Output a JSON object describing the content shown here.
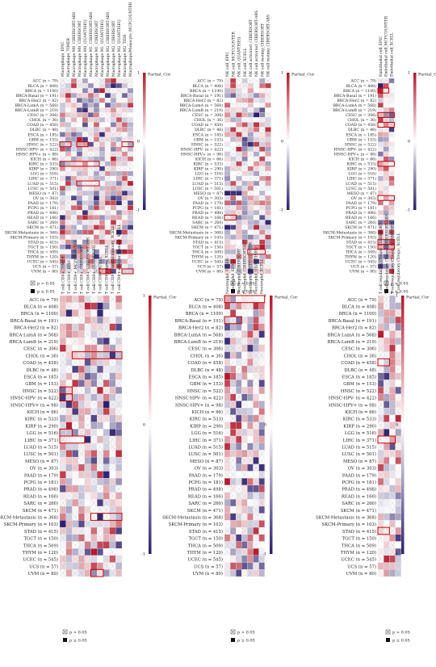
{
  "chart_data": [
    {
      "type": "heatmap",
      "legend_title": "Partial_Cor",
      "legend_ticks": [
        "1",
        "0",
        "-1"
      ],
      "sig_labels": [
        "p > 0.05",
        "p ≤ 0.05"
      ],
      "rows": [
        "ACC (n = 79)",
        "BLCA (n = 408)",
        "BRCA (n = 1100)",
        "BRCA-Basal (n = 191)",
        "BRCA-Her2 (n = 82)",
        "BRCA-LumA (n = 568)",
        "BRCA-LumB (n = 219)",
        "CESC (n = 306)",
        "CHOL (n = 36)",
        "COAD (n = 458)",
        "DLBC (n = 48)",
        "ESCA (n = 185)",
        "GBM (n = 153)",
        "HNSC (n = 522)",
        "HNSC-HPV- (n = 422)",
        "HNSC-HPV+ (n = 98)",
        "KICH (n = 66)",
        "KIRC (n = 533)",
        "KIRP (n = 290)",
        "LGG (n = 516)",
        "LIHC (n = 371)",
        "LUAD (n = 515)",
        "LUSC (n = 501)",
        "MESO (n = 87)",
        "OV (n = 303)",
        "PAAD (n = 179)",
        "PCPG (n = 181)",
        "PRAD (n = 498)",
        "READ (n = 166)",
        "SARC (n = 260)",
        "SKCM (n = 471)",
        "SKCM-Metastasis (n = 368)",
        "SKCM-Primary (n = 103)",
        "STAD (n = 415)",
        "TGCT (n = 150)",
        "THCA (n = 509)",
        "THYM (n = 120)",
        "UCEC (n = 545)",
        "UCS (n = 57)",
        "UVM (n = 80)"
      ],
      "columns": [
        "Macrophage_EPIC",
        "Macrophage_TIMER",
        "Macrophage M0_CIBERSORT-ABS",
        "Macrophage M0_CIBERSORT",
        "Macrophage M0_QUANTISEQ",
        "Macrophage M1_CIBERSORT-ABS",
        "Macrophage M1_CIBERSORT",
        "Macrophage M1_QUANTISEQ",
        "Macrophage M2_CIBERSORT-ABS",
        "Macrophage M2_CIBERSORT",
        "Macrophage M2_QUANTISEQ",
        "Macrophage M2_TIDE",
        "Macrophage/Monocyte_MCPCOUNTER"
      ]
    },
    {
      "type": "heatmap",
      "legend_title": "Partial_Cor",
      "legend_ticks": [
        "1",
        "0",
        "-1"
      ],
      "sig_labels": [
        "p > 0.05",
        "p ≤ 0.05"
      ],
      "rows": [
        "ACC (n = 79)",
        "BLCA (n = 408)",
        "BRCA (n = 1100)",
        "BRCA-Basal (n = 191)",
        "BRCA-Her2 (n = 82)",
        "BRCA-LumA (n = 568)",
        "BRCA-LumB (n = 219)",
        "CESC (n = 306)",
        "CHOL (n = 36)",
        "COAD (n = 458)",
        "DLBC (n = 48)",
        "ESCA (n = 185)",
        "GBM (n = 153)",
        "HNSC (n = 522)",
        "HNSC-HPV- (n = 422)",
        "HNSC-HPV+ (n = 98)",
        "KICH (n = 66)",
        "KIRC (n = 533)",
        "KIRP (n = 290)",
        "LGG (n = 516)",
        "LIHC (n = 371)",
        "LUAD (n = 515)",
        "LUSC (n = 501)",
        "MESO (n = 87)",
        "OV (n = 303)",
        "PAAD (n = 179)",
        "PCPG (n = 181)",
        "PRAD (n = 498)",
        "READ (n = 166)",
        "SARC (n = 260)",
        "SKCM (n = 471)",
        "SKCM-Metastasis (n = 368)",
        "SKCM-Primary (n = 103)",
        "STAD (n = 415)",
        "TGCT (n = 150)",
        "THCA (n = 509)",
        "THYM (n = 120)",
        "UCEC (n = 545)",
        "UCS (n = 57)",
        "UVM (n = 80)"
      ],
      "columns": [
        "NK cell_EPIC",
        "NK cell_MCPCOUNTER",
        "NK cell_QUANTISEQ",
        "NK cell_XCELL",
        "NK cell activated_CIBERSORT",
        "NK cell activated_CIBERSORT-ABS",
        "NK cell resting_CIBERSORT",
        "NK cell resting_CIBERSORT-ABS"
      ]
    },
    {
      "type": "heatmap",
      "legend_title": "Partial_Cor",
      "legend_ticks": [
        "1",
        "0",
        "-1"
      ],
      "sig_labels": [
        "p > 0.05",
        "p ≤ 0.05"
      ],
      "rows": [
        "ACC (n = 79)",
        "BLCA (n = 408)",
        "BRCA (n = 1100)",
        "BRCA-Basal (n = 191)",
        "BRCA-Her2 (n = 82)",
        "BRCA-LumA (n = 568)",
        "BRCA-LumB (n = 219)",
        "CESC (n = 306)",
        "CHOL (n = 36)",
        "COAD (n = 458)",
        "DLBC (n = 48)",
        "ESCA (n = 185)",
        "GBM (n = 153)",
        "HNSC (n = 522)",
        "HNSC-HPV- (n = 422)",
        "HNSC-HPV+ (n = 98)",
        "KICH (n = 66)",
        "KIRC (n = 533)",
        "KIRP (n = 290)",
        "LGG (n = 516)",
        "LIHC (n = 371)",
        "LUAD (n = 515)",
        "LUSC (n = 501)",
        "MESO (n = 87)",
        "OV (n = 303)",
        "PAAD (n = 179)",
        "PCPG (n = 181)",
        "PRAD (n = 498)",
        "READ (n = 166)",
        "SARC (n = 260)",
        "SKCM (n = 471)",
        "SKCM-Metastasis (n = 368)",
        "SKCM-Primary (n = 103)",
        "STAD (n = 415)",
        "TGCT (n = 150)",
        "THCA (n = 509)",
        "THYM (n = 120)",
        "UCEC (n = 545)",
        "UCS (n = 57)",
        "UVM (n = 80)"
      ],
      "columns": [
        "Endothelial cell_EPIC",
        "Endothelial cell_MCPCOUNTER",
        "Endothelial cell_XCELL"
      ]
    },
    {
      "type": "heatmap",
      "legend_title": "Partial_Cor",
      "legend_ticks": [
        "1",
        "0",
        "-1"
      ],
      "sig_labels": [
        "p > 0.05",
        "p ≤ 0.05"
      ],
      "rows": [
        "ACC (n = 79)",
        "BLCA (n = 408)",
        "BRCA (n = 1100)",
        "BRCA-Basal (n = 191)",
        "BRCA-Her2 (n = 82)",
        "BRCA-LumA (n = 568)",
        "BRCA-LumB (n = 219)",
        "CESC (n = 306)",
        "CHOL (n = 36)",
        "COAD (n = 458)",
        "DLBC (n = 48)",
        "ESCA (n = 185)",
        "GBM (n = 153)",
        "HNSC (n = 522)",
        "HNSC-HPV- (n = 422)",
        "HNSC-HPV+ (n = 98)",
        "KICH (n = 66)",
        "KIRC (n = 533)",
        "KIRP (n = 290)",
        "LGG (n = 516)",
        "LIHC (n = 371)",
        "LUAD (n = 515)",
        "LUSC (n = 501)",
        "MESO (n = 87)",
        "OV (n = 303)",
        "PAAD (n = 179)",
        "PCPG (n = 181)",
        "PRAD (n = 498)",
        "READ (n = 166)",
        "SARC (n = 260)",
        "SKCM (n = 471)",
        "SKCM-Metastasis (n = 368)",
        "SKCM-Primary (n = 103)",
        "STAD (n = 415)",
        "TGCT (n = 150)",
        "THCA (n = 509)",
        "THYM (n = 120)",
        "UCEC (n = 545)",
        "UCS (n = 57)",
        "UVM (n = 80)"
      ],
      "columns": [
        "T cell CD8+_TIMER",
        "T cell CD8+_EPIC",
        "T cell CD8+_MCPCOUNTER",
        "T cell CD8+_CIBERSORT",
        "T cell CD8+_CIBERSORT-ABS",
        "T cell CD8+_QUANTISEQ",
        "T cell CD8+_XCELL",
        "T cell CD8+ naive_XCELL",
        "T cell CD8+ central memory_XCELL",
        "T cell CD8+ effector memory_XCELL"
      ]
    },
    {
      "type": "heatmap",
      "legend_title": "Partial_Cor",
      "legend_ticks": [
        "1",
        "0",
        "-1"
      ],
      "sig_labels": [
        "p > 0.05",
        "p ≤ 0.05"
      ],
      "rows": [
        "ACC (n = 79)",
        "BLCA (n = 408)",
        "BRCA (n = 1100)",
        "BRCA-Basal (n = 191)",
        "BRCA-Her2 (n = 82)",
        "BRCA-LumA (n = 568)",
        "BRCA-LumB (n = 219)",
        "CESC (n = 306)",
        "CHOL (n = 36)",
        "COAD (n = 458)",
        "DLBC (n = 48)",
        "ESCA (n = 185)",
        "GBM (n = 153)",
        "HNSC (n = 522)",
        "HNSC-HPV- (n = 422)",
        "HNSC-HPV+ (n = 98)",
        "KICH (n = 66)",
        "KIRC (n = 533)",
        "KIRP (n = 290)",
        "LGG (n = 516)",
        "LIHC (n = 371)",
        "LUAD (n = 515)",
        "LUSC (n = 501)",
        "MESO (n = 87)",
        "OV (n = 303)",
        "PAAD (n = 179)",
        "PCPG (n = 181)",
        "PRAD (n = 498)",
        "READ (n = 166)",
        "SARC (n = 260)",
        "SKCM (n = 471)",
        "SKCM-Metastasis (n = 368)",
        "SKCM-Primary (n = 103)",
        "STAD (n = 415)",
        "TGCT (n = 150)",
        "THCA (n = 509)",
        "THYM (n = 120)",
        "UCEC (n = 545)",
        "UCS (n = 57)",
        "UVM (n = 80)"
      ],
      "columns": [
        "Neutrophil_TIMER",
        "Neutrophil_EPIC",
        "Neutrophil_CIBERSORT",
        "Neutrophil_CIBERSORT-ABS",
        "Neutrophil_MCPCOUNTER",
        "Neutrophil_QUANTISEQ",
        "Neutrophil_XCELL"
      ]
    },
    {
      "type": "heatmap",
      "legend_title": "Partial_Cor",
      "legend_ticks": [
        "1",
        "0",
        "-1"
      ],
      "sig_labels": [
        "p > 0.05",
        "p ≤ 0.05"
      ],
      "rows": [
        "ACC (n = 79)",
        "BLCA (n = 408)",
        "BRCA (n = 1100)",
        "BRCA-Basal (n = 191)",
        "BRCA-Her2 (n = 82)",
        "BRCA-LumA (n = 568)",
        "BRCA-LumB (n = 219)",
        "CESC (n = 306)",
        "CHOL (n = 36)",
        "COAD (n = 458)",
        "DLBC (n = 48)",
        "ESCA (n = 185)",
        "GBM (n = 153)",
        "HNSC (n = 522)",
        "HNSC-HPV- (n = 422)",
        "HNSC-HPV+ (n = 98)",
        "KICH (n = 66)",
        "KIRC (n = 533)",
        "KIRP (n = 290)",
        "LGG (n = 516)",
        "LIHC (n = 371)",
        "LUAD (n = 515)",
        "LUSC (n = 501)",
        "MESO (n = 87)",
        "OV (n = 303)",
        "PAAD (n = 179)",
        "PCPG (n = 181)",
        "PRAD (n = 498)",
        "READ (n = 166)",
        "SARC (n = 260)",
        "SKCM (n = 471)",
        "SKCM-Metastasis (n = 368)",
        "SKCM-Primary (n = 103)",
        "STAD (n = 415)",
        "TGCT (n = 150)",
        "THCA (n = 509)",
        "THYM (n = 120)",
        "UCEC (n = 545)",
        "UCS (n = 57)",
        "UVM (n = 80)"
      ],
      "columns": [
        "T cell regulatory (Tregs)_CIBERSORT",
        "T cell regulatory (Tregs)_CIBERSORT-ABS",
        "T cell regulatory (Tregs)_QUANTISEQ",
        "T cell regulatory (Tregs)_XCELL"
      ]
    }
  ],
  "colors": {
    "positive": "#b2182b",
    "neutral": "#ffffff",
    "negative": "#2d1e6b",
    "highlight": "#cc0000"
  }
}
